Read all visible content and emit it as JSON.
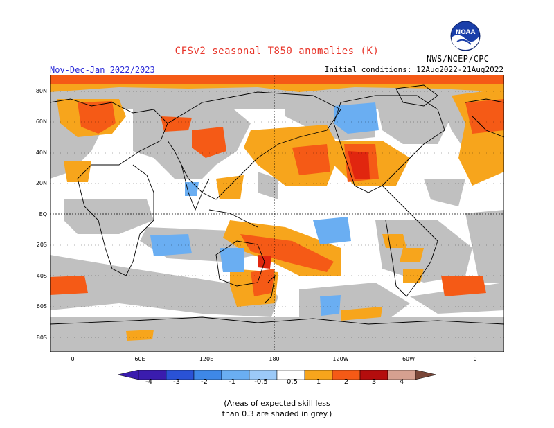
{
  "header": {
    "title": "CFSv2 seasonal T850 anomalies (K)",
    "season": "Nov-Dec-Jan 2022/2023",
    "initial_conditions": "Initial conditions: 12Aug2022-21Aug2022",
    "agency": "NWS/NCEP/CPC",
    "logo_text": "NOAA"
  },
  "axes": {
    "lat_labels": [
      "80N",
      "60N",
      "40N",
      "20N",
      "EQ",
      "20S",
      "40S",
      "60S",
      "80S"
    ],
    "lon_labels": [
      "0",
      "60E",
      "120E",
      "180",
      "120W",
      "60W",
      "0"
    ]
  },
  "legend": {
    "labels": [
      "-4",
      "-3",
      "-2",
      "-1",
      "-0.5",
      "0.5",
      "1",
      "2",
      "3",
      "4"
    ],
    "colors": [
      "#3a1cae",
      "#2a52d6",
      "#3e88e8",
      "#6aaef2",
      "#9ccaf8",
      "#ffffff",
      "#f7a51c",
      "#f55a16",
      "#e1260f",
      "#b40d0d",
      "#d6a090",
      "#7a4638"
    ],
    "note_line1": "(Areas of expected skill less",
    "note_line2": "than 0.3 are shaded in grey.)"
  },
  "map_colors": {
    "grey_skill_mask": "#c0c0c0",
    "ocean_land_bg": "#ffffff",
    "coastline": "#000000"
  }
}
